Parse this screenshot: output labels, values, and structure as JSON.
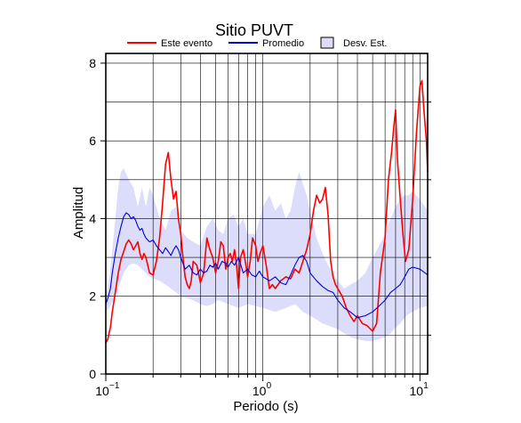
{
  "colors": {
    "event": "#ff0000",
    "mean": "#0000dd",
    "std_fill": "#dcdcfb",
    "grid": "#000000"
  },
  "chart_data": {
    "type": "line",
    "title": "Sitio PUVT",
    "xlabel": "Periodo (s)",
    "ylabel": "Amplitud",
    "x_scale": "log",
    "xlim": [
      0.1,
      11.2
    ],
    "ylim": [
      0,
      8.25
    ],
    "x_ticks": [
      {
        "value": 0.1,
        "base": "10",
        "exp": "−1"
      },
      {
        "value": 1,
        "base": "10",
        "exp": "0"
      },
      {
        "value": 10,
        "base": "10",
        "exp": "1"
      }
    ],
    "y_ticks": [
      0,
      2,
      4,
      6,
      8
    ],
    "grid": true,
    "legend_position": "top",
    "legend": [
      {
        "key": "event",
        "label": "Este evento"
      },
      {
        "key": "mean",
        "label": "Promedio"
      },
      {
        "key": "std",
        "label": "Desv. Est."
      }
    ],
    "series": [
      {
        "key": "event",
        "name": "Este evento",
        "x": [
          0.1,
          0.103,
          0.107,
          0.11,
          0.115,
          0.12,
          0.125,
          0.13,
          0.135,
          0.14,
          0.145,
          0.15,
          0.155,
          0.16,
          0.165,
          0.17,
          0.175,
          0.18,
          0.185,
          0.19,
          0.2,
          0.21,
          0.22,
          0.23,
          0.24,
          0.25,
          0.26,
          0.27,
          0.28,
          0.29,
          0.3,
          0.31,
          0.32,
          0.33,
          0.34,
          0.35,
          0.36,
          0.38,
          0.4,
          0.42,
          0.44,
          0.46,
          0.48,
          0.5,
          0.52,
          0.54,
          0.56,
          0.58,
          0.6,
          0.62,
          0.64,
          0.66,
          0.68,
          0.7,
          0.72,
          0.75,
          0.78,
          0.8,
          0.83,
          0.86,
          0.9,
          0.93,
          0.96,
          1.0,
          1.05,
          1.1,
          1.15,
          1.2,
          1.3,
          1.4,
          1.5,
          1.6,
          1.7,
          1.8,
          1.9,
          2.0,
          2.1,
          2.2,
          2.3,
          2.4,
          2.5,
          2.6,
          2.7,
          2.8,
          2.9,
          3.0,
          3.2,
          3.4,
          3.6,
          3.8,
          4.0,
          4.3,
          4.6,
          5.0,
          5.3,
          5.6,
          6.0,
          6.3,
          6.6,
          6.8,
          7.0,
          7.2,
          7.5,
          7.8,
          8.1,
          8.5,
          9.0,
          9.5,
          10.0,
          10.3,
          10.6,
          11.0,
          11.2
        ],
        "values": [
          0.8,
          0.9,
          1.2,
          1.6,
          2.1,
          2.6,
          2.95,
          3.15,
          3.35,
          3.45,
          3.35,
          3.2,
          3.3,
          3.4,
          3.1,
          2.95,
          3.1,
          3.0,
          2.8,
          2.6,
          2.55,
          2.9,
          3.5,
          4.4,
          5.4,
          5.7,
          5.0,
          4.5,
          4.7,
          4.0,
          3.6,
          3.0,
          2.5,
          2.3,
          2.2,
          2.4,
          2.9,
          2.8,
          2.35,
          2.6,
          3.5,
          3.2,
          3.0,
          2.6,
          2.9,
          3.4,
          3.3,
          2.7,
          3.0,
          3.1,
          2.9,
          3.2,
          2.8,
          2.2,
          3.0,
          3.2,
          2.8,
          2.5,
          2.9,
          3.5,
          3.3,
          2.9,
          3.1,
          3.3,
          2.8,
          2.2,
          2.3,
          2.2,
          2.4,
          2.5,
          2.45,
          2.7,
          2.6,
          2.9,
          3.2,
          3.6,
          4.2,
          4.6,
          4.4,
          4.5,
          4.8,
          4.1,
          2.9,
          2.5,
          2.3,
          2.2,
          2.0,
          1.7,
          1.5,
          1.35,
          1.5,
          1.3,
          1.25,
          1.1,
          1.3,
          2.6,
          3.5,
          5.0,
          5.7,
          6.3,
          6.8,
          5.5,
          4.5,
          3.6,
          2.9,
          3.2,
          4.5,
          6.2,
          7.4,
          7.55,
          6.8,
          6.0,
          5.2
        ]
      },
      {
        "key": "mean",
        "name": "Promedio",
        "x": [
          0.1,
          0.103,
          0.107,
          0.11,
          0.115,
          0.12,
          0.125,
          0.13,
          0.135,
          0.14,
          0.145,
          0.15,
          0.155,
          0.16,
          0.165,
          0.17,
          0.175,
          0.18,
          0.19,
          0.2,
          0.21,
          0.22,
          0.23,
          0.24,
          0.25,
          0.26,
          0.27,
          0.28,
          0.29,
          0.3,
          0.32,
          0.34,
          0.36,
          0.38,
          0.4,
          0.42,
          0.44,
          0.46,
          0.48,
          0.5,
          0.52,
          0.55,
          0.58,
          0.6,
          0.63,
          0.66,
          0.7,
          0.75,
          0.8,
          0.85,
          0.9,
          0.95,
          1.0,
          1.1,
          1.2,
          1.3,
          1.4,
          1.5,
          1.6,
          1.7,
          1.8,
          1.9,
          2.0,
          2.2,
          2.4,
          2.6,
          2.8,
          3.0,
          3.3,
          3.6,
          4.0,
          4.5,
          5.0,
          5.5,
          6.0,
          6.5,
          7.0,
          7.5,
          8.0,
          8.5,
          9.0,
          10.0,
          11.2
        ],
        "values": [
          1.8,
          1.95,
          2.2,
          2.6,
          3.1,
          3.5,
          3.8,
          4.05,
          4.15,
          4.1,
          4.0,
          4.05,
          3.95,
          3.8,
          3.7,
          3.75,
          3.6,
          3.5,
          3.4,
          3.45,
          3.3,
          3.2,
          3.1,
          3.25,
          3.15,
          3.05,
          3.2,
          3.3,
          3.2,
          3.0,
          2.7,
          2.8,
          2.6,
          2.55,
          2.7,
          2.6,
          2.65,
          2.8,
          2.75,
          2.85,
          2.7,
          2.9,
          2.85,
          2.75,
          2.9,
          2.8,
          3.0,
          2.6,
          2.7,
          2.55,
          2.5,
          2.65,
          2.5,
          2.4,
          2.5,
          2.35,
          2.3,
          2.55,
          2.8,
          3.0,
          3.05,
          2.9,
          2.6,
          2.4,
          2.25,
          2.15,
          2.1,
          1.9,
          1.7,
          1.6,
          1.45,
          1.5,
          1.6,
          1.75,
          1.9,
          2.1,
          2.2,
          2.3,
          2.5,
          2.7,
          2.75,
          2.7,
          2.55
        ]
      }
    ],
    "band": {
      "key": "std",
      "name": "Desv. Est.",
      "x": [
        0.1,
        0.105,
        0.11,
        0.115,
        0.12,
        0.125,
        0.13,
        0.14,
        0.15,
        0.16,
        0.17,
        0.18,
        0.19,
        0.2,
        0.22,
        0.24,
        0.26,
        0.28,
        0.3,
        0.33,
        0.36,
        0.4,
        0.44,
        0.48,
        0.52,
        0.56,
        0.6,
        0.65,
        0.7,
        0.75,
        0.8,
        0.9,
        1.0,
        1.1,
        1.2,
        1.3,
        1.4,
        1.5,
        1.6,
        1.7,
        1.8,
        1.9,
        2.0,
        2.2,
        2.4,
        2.6,
        2.8,
        3.0,
        3.3,
        3.6,
        4.0,
        4.5,
        5.0,
        5.5,
        6.0,
        6.5,
        7.0,
        7.5,
        8.0,
        8.5,
        9.0,
        10.0,
        11.2
      ],
      "upper": [
        2.0,
        2.4,
        3.2,
        4.0,
        4.8,
        5.2,
        5.3,
        5.0,
        4.8,
        4.3,
        4.8,
        4.3,
        4.8,
        4.6,
        4.0,
        3.7,
        4.2,
        4.3,
        3.7,
        3.5,
        3.4,
        3.3,
        3.8,
        4.0,
        3.7,
        3.6,
        4.0,
        4.1,
        3.8,
        4.0,
        3.6,
        3.6,
        4.3,
        4.6,
        4.2,
        4.4,
        4.0,
        4.2,
        4.8,
        5.2,
        4.9,
        4.6,
        4.2,
        3.5,
        3.1,
        2.8,
        2.6,
        2.4,
        2.2,
        2.3,
        2.4,
        2.6,
        3.0,
        3.3,
        3.6,
        4.0,
        4.3,
        4.5,
        4.6,
        4.6,
        4.7,
        4.5,
        4.2
      ],
      "lower": [
        1.6,
        1.7,
        1.85,
        2.0,
        2.2,
        2.4,
        2.6,
        2.8,
        2.85,
        2.8,
        2.7,
        2.6,
        2.5,
        2.45,
        2.4,
        2.3,
        2.2,
        2.1,
        2.0,
        1.95,
        1.9,
        1.8,
        1.75,
        1.8,
        1.9,
        1.85,
        1.8,
        1.75,
        1.7,
        1.75,
        1.8,
        1.75,
        1.7,
        1.65,
        1.6,
        1.65,
        1.7,
        1.75,
        1.8,
        1.7,
        1.6,
        1.55,
        1.5,
        1.4,
        1.3,
        1.25,
        1.2,
        1.15,
        1.05,
        0.95,
        0.9,
        0.85,
        0.85,
        0.9,
        0.95,
        1.05,
        1.2,
        1.3,
        1.45,
        1.55,
        1.6,
        1.7,
        1.75
      ]
    }
  }
}
